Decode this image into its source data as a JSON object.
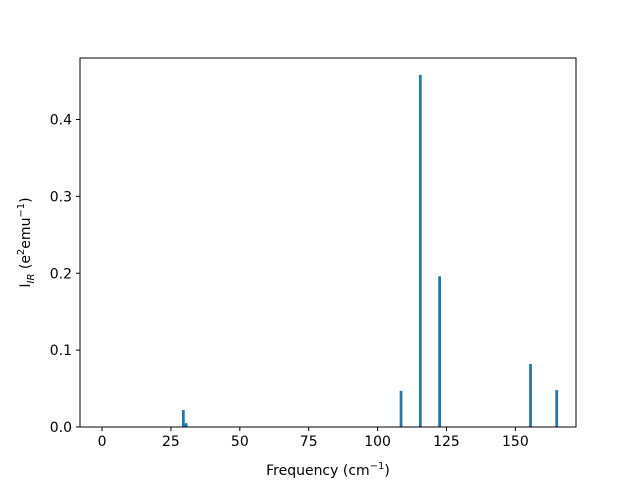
{
  "chart_data": {
    "type": "bar",
    "title": "",
    "x_label": "Frequency (cm⁻¹)",
    "x_label_parts": {
      "main": "Frequency (cm",
      "sup": "−1",
      "tail": ")"
    },
    "y_label_parts": {
      "main": "I",
      "sub": "IR",
      "mid": " (e",
      "sup1": "2",
      "mid2": "emu",
      "sup2": "−1",
      "tail": ")"
    },
    "xlim": [
      -8,
      172
    ],
    "ylim": [
      0,
      0.48
    ],
    "x_ticks": [
      0,
      25,
      50,
      75,
      100,
      125,
      150
    ],
    "x_tick_labels": [
      "0",
      "25",
      "50",
      "75",
      "100",
      "125",
      "150"
    ],
    "y_ticks": [
      0.0,
      0.1,
      0.2,
      0.3,
      0.4
    ],
    "y_tick_labels": [
      "0.0",
      "0.1",
      "0.2",
      "0.3",
      "0.4"
    ],
    "bar_width": 1.0,
    "bar_color": "#1f77b4",
    "grid": false,
    "legend": "none",
    "x": [
      29.5,
      30.5,
      108.5,
      115.5,
      122.5,
      155.5,
      165.0
    ],
    "values": [
      0.022,
      0.005,
      0.047,
      0.458,
      0.196,
      0.082,
      0.048
    ]
  }
}
